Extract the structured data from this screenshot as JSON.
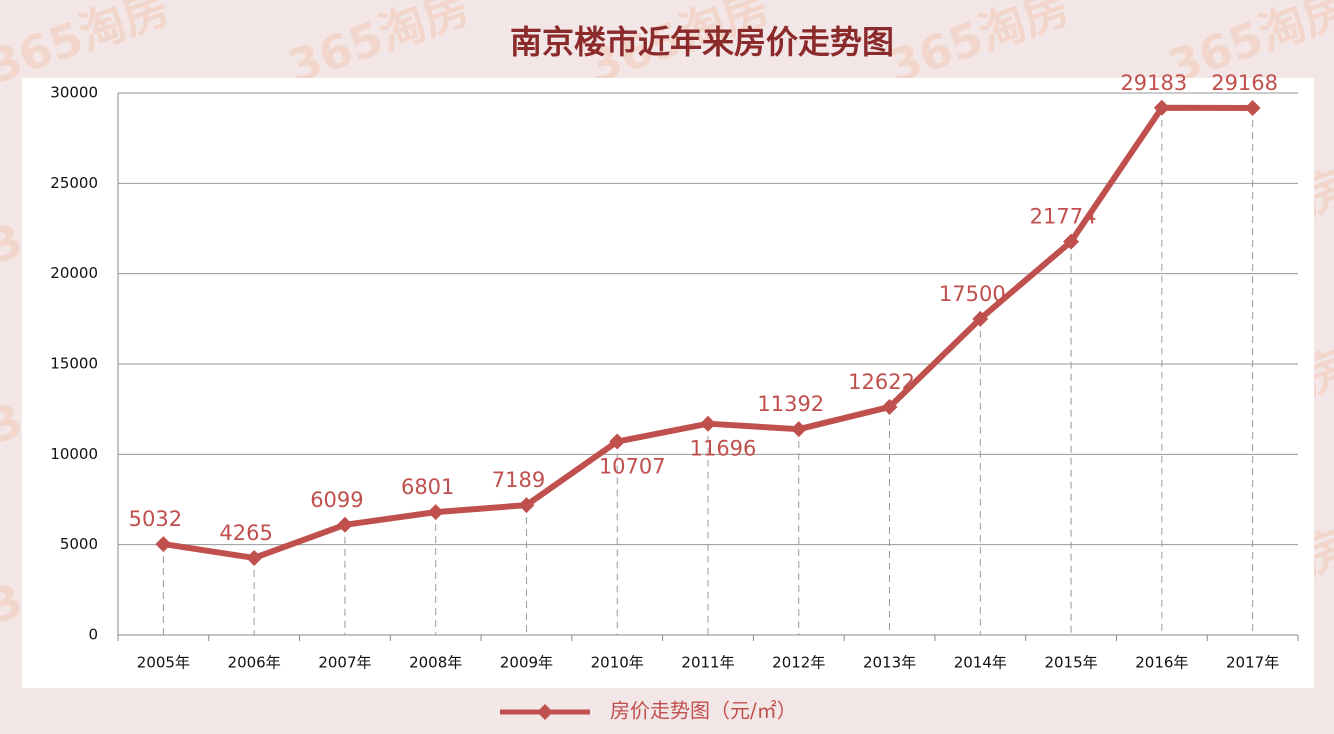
{
  "chart_data": {
    "type": "line",
    "title": "南京楼市近年来房价走势图",
    "watermark": "365淘房",
    "categories": [
      "2005年",
      "2006年",
      "2007年",
      "2008年",
      "2009年",
      "2010年",
      "2011年",
      "2012年",
      "2013年",
      "2014年",
      "2015年",
      "2016年",
      "2017年"
    ],
    "series": [
      {
        "name": "房价走势图（元/㎡）",
        "color": "#c0504d",
        "values": [
          5032,
          4265,
          6099,
          6801,
          7189,
          10707,
          11696,
          11392,
          12622,
          17500,
          21774,
          29183,
          29168
        ]
      }
    ],
    "ylim": [
      0,
      30000
    ],
    "yticks": [
      0,
      5000,
      10000,
      15000,
      20000,
      25000,
      30000
    ],
    "grid": true,
    "legend": "bottom"
  }
}
